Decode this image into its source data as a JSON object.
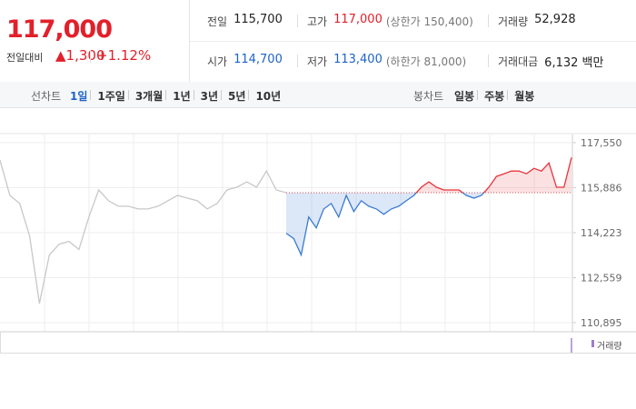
{
  "quote": {
    "price": "117,000",
    "change_label": "전일대비",
    "change": "1,300",
    "change_pct": "+1.12%"
  },
  "summary": {
    "rows": [
      [
        {
          "label": "전일",
          "value": "115,700"
        },
        {
          "label": "고가",
          "value": "117,000",
          "note": "(상한가 150,400)"
        },
        {
          "label": "거래량",
          "value": "52,928"
        }
      ],
      [
        {
          "label": "시가",
          "value": "114,700"
        },
        {
          "label": "저가",
          "value": "113,400",
          "note": "(하한가 81,000)"
        },
        {
          "label": "거래대금",
          "value": "6,132 백만"
        }
      ]
    ]
  },
  "line_tabs": {
    "label": "선차트",
    "items": [
      "1일",
      "1주일",
      "3개월",
      "1년",
      "3년",
      "5년",
      "10년"
    ],
    "selected": 0
  },
  "candle_tabs": {
    "label": "봉차트",
    "items": [
      "일봉",
      "주봉",
      "월봉"
    ]
  },
  "chart_data": {
    "type": "line",
    "ylim": [
      110560,
      117850
    ],
    "yticks": [
      {
        "value": 110895,
        "label": "110,895"
      },
      {
        "value": 112559,
        "label": "112,559"
      },
      {
        "value": 114223,
        "label": "114,223"
      },
      {
        "value": 115886,
        "label": "115,886"
      },
      {
        "value": 117550,
        "label": "117,550"
      }
    ],
    "grid": true,
    "baseline": 115700,
    "series": [
      {
        "color": "#c8c8c8",
        "values": [
          116900,
          115600,
          115300,
          114100,
          111600,
          113400,
          113800,
          113900,
          113600,
          114800,
          115800,
          115400,
          115200,
          115200,
          115100,
          115100,
          115200,
          115400,
          115600,
          115500,
          115400,
          115100,
          115300,
          115800,
          115900,
          116100,
          115900,
          116500,
          115800,
          115700
        ]
      },
      {
        "color": "#e8343c",
        "down_color": "#3b7bd4",
        "values": [
          114200,
          114000,
          113400,
          114800,
          114400,
          115100,
          115300,
          114800,
          115600,
          115000,
          115400,
          115200,
          115100,
          114900,
          115100,
          115200,
          115400,
          115600,
          115900,
          116100,
          115900,
          115800,
          115800,
          115800,
          115600,
          115500,
          115600,
          115900,
          116300,
          116400,
          116500,
          116500,
          116400,
          116600,
          116500,
          116800,
          115900,
          115900,
          117000
        ]
      }
    ],
    "volume_label": "거래량"
  }
}
